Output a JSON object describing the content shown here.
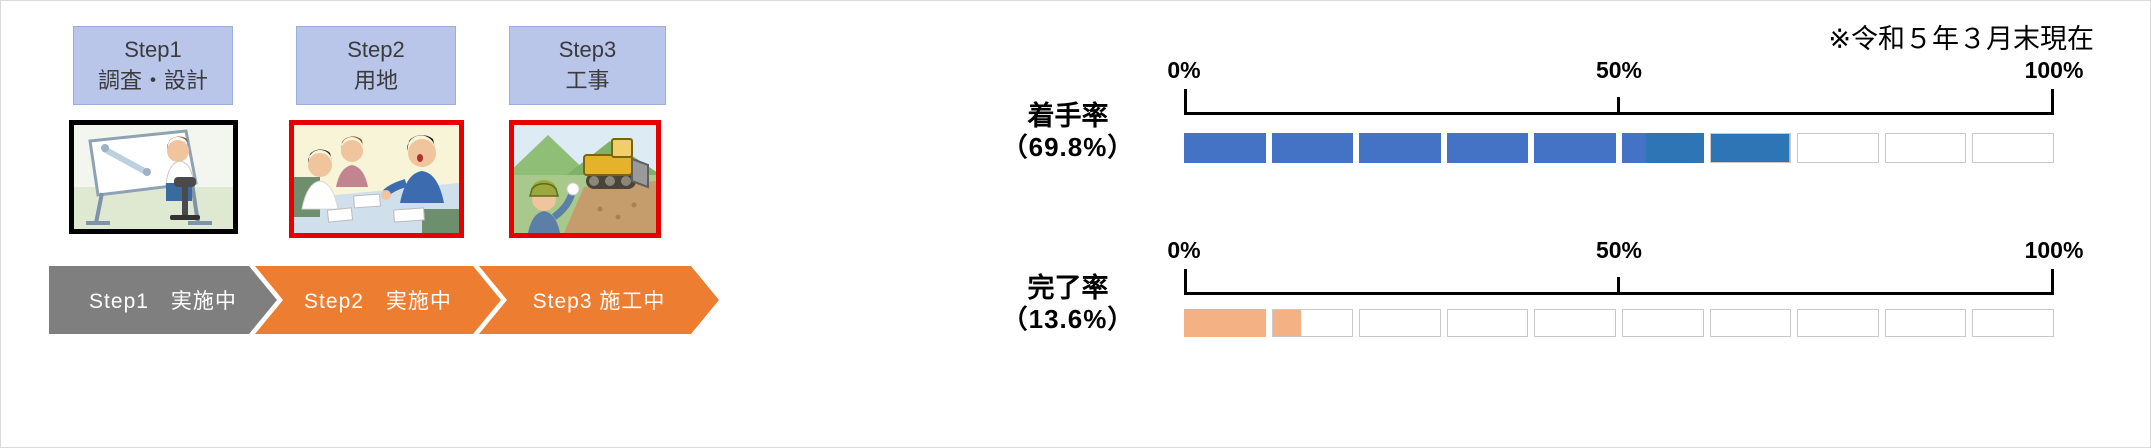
{
  "note": "※令和５年３月末現在",
  "steps": [
    {
      "step": "Step1",
      "name": "調査・設計",
      "box_color": "#b9c5e9"
    },
    {
      "step": "Step2",
      "name": "用地",
      "box_color": "#b9c5e9"
    },
    {
      "step": "Step3",
      "name": "工事",
      "box_color": "#b9c5e9"
    }
  ],
  "illustrations": [
    {
      "name": "survey-design-drafting-scene",
      "frame_color": "#000000"
    },
    {
      "name": "land-negotiation-meeting-scene",
      "frame_color": "#e60000"
    },
    {
      "name": "construction-bulldozer-scene",
      "frame_color": "#e60000"
    }
  ],
  "progress_arrows": [
    {
      "label": "Step1　実施中",
      "color": "#7f7f7f"
    },
    {
      "label": "Step2　実施中",
      "color": "#ed7d31"
    },
    {
      "label": "Step3 施工中",
      "color": "#ed7d31"
    }
  ],
  "chart_data": [
    {
      "type": "bar",
      "title": "着手率",
      "value_label": "（69.8%）",
      "value": 69.8,
      "segments": [
        {
          "to": 52.9,
          "color": "#4472c4"
        },
        {
          "to": 69.8,
          "color": "#2e75b6"
        }
      ],
      "empty_color": "#ffffff",
      "empty_border_color": "#c9c9c9",
      "axis": {
        "min": 0,
        "max": 100,
        "cells": 10,
        "ticks": [
          "0%",
          "50%",
          "100%"
        ]
      }
    },
    {
      "type": "bar",
      "title": "完了率",
      "value_label": "（13.6%）",
      "value": 13.6,
      "segments": [
        {
          "to": 13.6,
          "color": "#f4b183"
        }
      ],
      "empty_color": "#ffffff",
      "empty_border_color": "#c9c9c9",
      "axis": {
        "min": 0,
        "max": 100,
        "cells": 10,
        "ticks": [
          "0%",
          "50%",
          "100%"
        ]
      }
    }
  ]
}
